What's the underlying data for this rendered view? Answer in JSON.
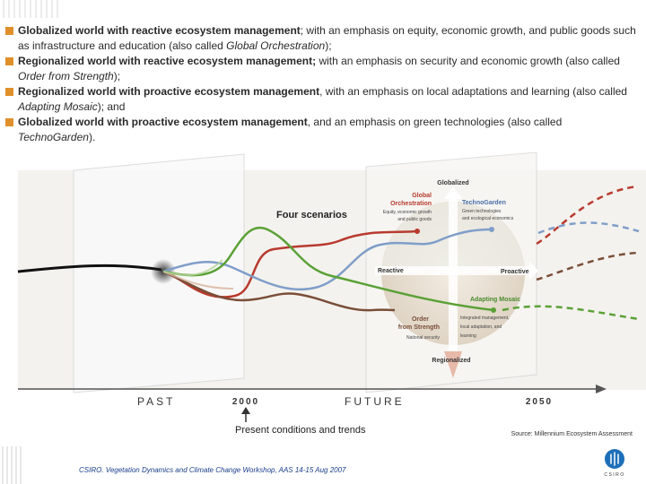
{
  "bullets": [
    {
      "bold": "Globalized world with reactive ecosystem management",
      "rest": "; with an emphasis on equity, economic growth, and public goods such as infrastructure and education (also called ",
      "ital": "Global Orchestration",
      "end": ");"
    },
    {
      "bold": "Regionalized world with reactive ecosystem management;",
      "rest": " with an emphasis on security and economic growth (also called ",
      "ital": "Order from Strength",
      "end": ");"
    },
    {
      "bold": "Regionalized world with proactive ecosystem management",
      "rest": ", with an emphasis on local adaptations and learning (also called ",
      "ital": "Adapting Mosaic",
      "end": "); and"
    },
    {
      "bold": "Globalized world with proactive ecosystem management",
      "rest": ", and an emphasis on green technologies (also called ",
      "ital": "TechnoGarden",
      "end": ")."
    }
  ],
  "diagram": {
    "title": "Four scenarios",
    "globalized": "Globalized",
    "regionalized": "Regionalized",
    "reactive": "Reactive",
    "proactive": "Proactive",
    "q_global_orch_title1": "Global",
    "q_global_orch_title2": "Orchestration",
    "q_global_orch_desc1": "Equity, economic growth",
    "q_global_orch_desc2": "and public goods",
    "q_techno_title": "TechnoGarden",
    "q_techno_desc1": "Green technologies",
    "q_techno_desc2": "and ecological economics",
    "q_order_title1": "Order",
    "q_order_title2": "from Strength",
    "q_order_desc": "National security",
    "q_adapt_title": "Adapting Mosaic",
    "q_adapt_desc1": "Integrated management,",
    "q_adapt_desc2": "local adaptation, and",
    "q_adapt_desc3": "learning",
    "past": "PAST",
    "future": "FUTURE",
    "year_2000": "2000",
    "year_2050": "2050",
    "present": "Present conditions and trends",
    "source": "Source: Millennium Ecosystem Assessment"
  },
  "footer": "CSIRO. Vegetation Dynamics and Climate Change Workshop, AAS 14-15 Aug 2007",
  "logo_text": "CSIRO",
  "colors": {
    "bullet": "#e0902a",
    "red": "#b83a2e",
    "blue": "#7f9ec9",
    "green": "#5aa136",
    "brown": "#7a4e38",
    "footer": "#1a3d8c",
    "logo": "#1d6fb8"
  }
}
